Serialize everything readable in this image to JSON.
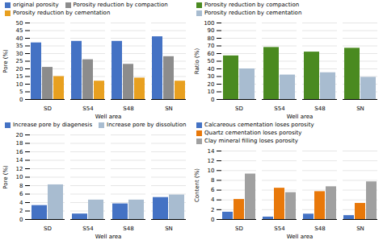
{
  "chart_data": [
    {
      "type": "bar",
      "categories": [
        "SD",
        "S54",
        "S48",
        "SN"
      ],
      "series": [
        {
          "name": "original porosity",
          "color": "#4472c4",
          "values": [
            37,
            38,
            38,
            41
          ]
        },
        {
          "name": "Porosity reduction by compaction",
          "color": "#8c8c8c",
          "values": [
            21,
            26,
            23,
            28
          ]
        },
        {
          "name": "Porosity reduction by cementation",
          "color": "#e8a020",
          "values": [
            15,
            12,
            14,
            12
          ]
        }
      ],
      "xlabel": "Well area",
      "ylabel": "Pore (%)",
      "ylim": [
        0,
        50
      ],
      "yticks": [
        0,
        5,
        10,
        15,
        20,
        25,
        30,
        35,
        40,
        45,
        50
      ],
      "grid": true,
      "legend": "upper left"
    },
    {
      "type": "bar",
      "categories": [
        "SD",
        "S54",
        "S48",
        "SN"
      ],
      "series": [
        {
          "name": "Porosity reduction by compaction",
          "color": "#4a8a20",
          "values": [
            57,
            68,
            62,
            67
          ]
        },
        {
          "name": "Porosity reduction by cementation",
          "color": "#a8bcd0",
          "values": [
            40,
            32,
            35,
            29
          ]
        }
      ],
      "xlabel": "Well area",
      "ylabel": "Ratio (%)",
      "ylim": [
        0,
        100
      ],
      "yticks": [
        0,
        10,
        20,
        30,
        40,
        50,
        60,
        70,
        80,
        90,
        100
      ],
      "grid": true,
      "legend": "upper left"
    },
    {
      "type": "bar",
      "categories": [
        "SD",
        "S54",
        "S48",
        "SN"
      ],
      "series": [
        {
          "name": "Increase pore by diagenesis",
          "color": "#4472c4",
          "values": [
            3.3,
            1.3,
            3.7,
            5.2
          ]
        },
        {
          "name": "Increase pore by dissolution",
          "color": "#a8bcd0",
          "values": [
            8.2,
            4.6,
            4.6,
            5.8
          ]
        }
      ],
      "xlabel": "Well area",
      "ylabel": "Pore (%)",
      "ylim": [
        0,
        20
      ],
      "yticks": [
        0,
        2,
        4,
        6,
        8,
        10,
        12,
        14,
        16,
        18,
        20
      ],
      "grid": true,
      "legend": "upper left"
    },
    {
      "type": "bar",
      "categories": [
        "SD",
        "S54",
        "S48",
        "SN"
      ],
      "series": [
        {
          "name": "Calcareous cementation loses porosity",
          "color": "#4472c4",
          "values": [
            1.5,
            0.5,
            1.1,
            0.8
          ]
        },
        {
          "name": "Quartz cementation loses porosity",
          "color": "#e8780a",
          "values": [
            4.1,
            6.4,
            5.7,
            3.3
          ]
        },
        {
          "name": "Clay mineral filling loses porosity",
          "color": "#a0a0a0",
          "values": [
            9.3,
            5.5,
            6.7,
            7.7
          ]
        }
      ],
      "xlabel": "Well area",
      "ylabel": "Content (%)",
      "ylim": [
        0,
        14
      ],
      "yticks": [
        0,
        2,
        4,
        6,
        8,
        10,
        12,
        14
      ],
      "grid": true,
      "legend": "upper left"
    }
  ]
}
